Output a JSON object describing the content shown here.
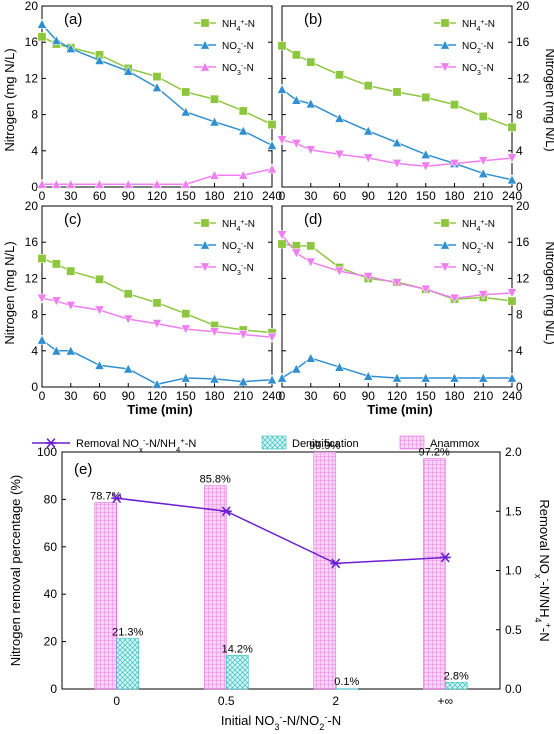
{
  "colors": {
    "NH4": "#8dc63f",
    "NO2": "#2f8fd0",
    "NO3": "#f07ef0",
    "removal": "#6a1fd1",
    "denitrification": "#a8f0f0",
    "anammox": "#f5a3f0"
  },
  "chart_data": [
    {
      "id": "a",
      "type": "line",
      "panel_tag": "(a)",
      "x": [
        0,
        15,
        30,
        60,
        90,
        120,
        150,
        180,
        210,
        240
      ],
      "xlim": [
        0,
        240
      ],
      "ylim": [
        0,
        20
      ],
      "yticks": [
        0,
        4,
        8,
        12,
        16,
        20
      ],
      "xticks": [
        "0",
        "30",
        "60",
        "90",
        "120",
        "150",
        "180",
        "210",
        "240"
      ],
      "series": [
        {
          "name": "NH4+-N",
          "legend": [
            "NH",
            "4",
            "+",
            "-N"
          ],
          "color_key": "NH4",
          "marker": "square",
          "values": [
            16.6,
            15.8,
            15.4,
            14.6,
            13.1,
            12.2,
            10.5,
            9.7,
            8.4,
            6.9
          ]
        },
        {
          "name": "NO2--N",
          "legend": [
            "NO",
            "2",
            "-",
            "-N"
          ],
          "color_key": "NO2",
          "marker": "triangle-up",
          "values": [
            18.0,
            16.2,
            15.3,
            14.0,
            12.8,
            11.0,
            8.3,
            7.2,
            6.2,
            4.6
          ]
        },
        {
          "name": "NO3--N",
          "legend": [
            "NO",
            "3",
            "-",
            "-N"
          ],
          "color_key": "NO3",
          "marker": "triangle-up",
          "values": [
            0.3,
            0.3,
            0.3,
            0.3,
            0.3,
            0.3,
            0.3,
            1.3,
            1.3,
            2.0
          ]
        }
      ]
    },
    {
      "id": "b",
      "type": "line",
      "panel_tag": "(b)",
      "x": [
        0,
        15,
        30,
        60,
        90,
        120,
        150,
        180,
        210,
        240
      ],
      "xlim": [
        0,
        240
      ],
      "ylim": [
        0,
        20
      ],
      "yticks": [
        0,
        4,
        8,
        12,
        16,
        20
      ],
      "xticks": [
        "0",
        "30",
        "60",
        "90",
        "120",
        "150",
        "180",
        "210",
        "240"
      ],
      "series": [
        {
          "name": "NH4+-N",
          "legend": [
            "NH",
            "4",
            "+",
            "-N"
          ],
          "color_key": "NH4",
          "marker": "square",
          "values": [
            15.6,
            14.6,
            13.8,
            12.4,
            11.2,
            10.5,
            9.9,
            9.1,
            7.8,
            6.6
          ]
        },
        {
          "name": "NO2--N",
          "legend": [
            "NO",
            "2",
            "-",
            "-N"
          ],
          "color_key": "NO2",
          "marker": "triangle-up",
          "values": [
            10.8,
            9.6,
            9.2,
            7.6,
            6.2,
            4.9,
            3.6,
            2.6,
            1.5,
            0.8
          ]
        },
        {
          "name": "NO3--N",
          "legend": [
            "NO",
            "3",
            "-",
            "-N"
          ],
          "color_key": "NO3",
          "marker": "triangle-down",
          "values": [
            5.2,
            4.8,
            4.1,
            3.6,
            3.2,
            2.6,
            2.3,
            2.6,
            2.9,
            3.2
          ]
        }
      ]
    },
    {
      "id": "c",
      "type": "line",
      "panel_tag": "(c)",
      "x": [
        0,
        15,
        30,
        60,
        90,
        120,
        150,
        180,
        210,
        240
      ],
      "xlim": [
        0,
        240
      ],
      "ylim": [
        0,
        20
      ],
      "yticks": [
        0,
        4,
        8,
        12,
        16,
        20
      ],
      "xticks": [
        "0",
        "30",
        "60",
        "90",
        "120",
        "150",
        "180",
        "210",
        "240"
      ],
      "series": [
        {
          "name": "NH4+-N",
          "legend": [
            "NH",
            "4",
            "+",
            "-N"
          ],
          "color_key": "NH4",
          "marker": "square",
          "values": [
            14.2,
            13.6,
            12.8,
            11.9,
            10.3,
            9.3,
            8.1,
            6.8,
            6.3,
            6.0
          ]
        },
        {
          "name": "NO2--N",
          "legend": [
            "NO",
            "2",
            "-",
            "-N"
          ],
          "color_key": "NO2",
          "marker": "triangle-up",
          "values": [
            5.2,
            4.0,
            4.0,
            2.4,
            2.0,
            0.3,
            1.0,
            0.9,
            0.6,
            0.8
          ]
        },
        {
          "name": "NO3--N",
          "legend": [
            "NO",
            "3",
            "-",
            "-N"
          ],
          "color_key": "NO3",
          "marker": "triangle-down",
          "values": [
            9.8,
            9.5,
            9.0,
            8.5,
            7.5,
            7.0,
            6.4,
            6.1,
            5.8,
            5.5
          ]
        }
      ]
    },
    {
      "id": "d",
      "type": "line",
      "panel_tag": "(d)",
      "x": [
        0,
        15,
        30,
        60,
        90,
        120,
        150,
        180,
        210,
        240
      ],
      "xlim": [
        0,
        240
      ],
      "ylim": [
        0,
        20
      ],
      "yticks": [
        0,
        4,
        8,
        12,
        16,
        20
      ],
      "xticks": [
        "0",
        "30",
        "60",
        "90",
        "120",
        "150",
        "180",
        "210",
        "240"
      ],
      "series": [
        {
          "name": "NH4+-N",
          "legend": [
            "NH",
            "4",
            "+",
            "-N"
          ],
          "color_key": "NH4",
          "marker": "square",
          "values": [
            15.8,
            15.6,
            15.6,
            13.2,
            12.0,
            11.6,
            10.8,
            9.7,
            9.9,
            9.5
          ]
        },
        {
          "name": "NO2--N",
          "legend": [
            "NO",
            "2",
            "-",
            "-N"
          ],
          "color_key": "NO2",
          "marker": "triangle-up",
          "values": [
            1.0,
            2.0,
            3.2,
            2.2,
            1.2,
            1.0,
            1.0,
            1.0,
            1.0,
            1.0
          ]
        },
        {
          "name": "NO3--N",
          "legend": [
            "NO",
            "3",
            "-",
            "-N"
          ],
          "color_key": "NO3",
          "marker": "triangle-down",
          "values": [
            16.8,
            14.8,
            13.8,
            12.8,
            12.2,
            11.5,
            10.8,
            9.8,
            10.2,
            10.4
          ]
        }
      ]
    },
    {
      "id": "e",
      "type": "bar",
      "panel_tag": "(e)",
      "categories": [
        "0",
        "0.5",
        "2",
        "+∞"
      ],
      "ylim": [
        0,
        100
      ],
      "yticks": [
        0,
        20,
        40,
        60,
        80,
        100
      ],
      "y2lim": [
        0,
        2.0
      ],
      "y2ticks": [
        "0.0",
        "0.5",
        "1.0",
        "1.5",
        "2.0"
      ],
      "series": [
        {
          "name": "Anammox",
          "color_key": "anammox",
          "values": [
            78.7,
            85.8,
            99.9,
            97.2
          ],
          "labels": [
            "78.7%",
            "85.8%",
            "99.9%",
            "97.2%"
          ]
        },
        {
          "name": "Denitrification",
          "color_key": "denitrification",
          "values": [
            21.3,
            14.2,
            0.1,
            2.8
          ],
          "labels": [
            "21.3%",
            "14.2%",
            "0.1%",
            "2.8%"
          ]
        },
        {
          "name": "Removal NOx--N/NH4+-N",
          "color_key": "removal",
          "axis": "right",
          "type": "line",
          "values": [
            1.61,
            1.5,
            1.06,
            1.11
          ]
        }
      ]
    }
  ],
  "labels": {
    "y_top_left": "Nitrogen (mg N/L)",
    "y_top_right": "Nitrogen (mg N/L)",
    "y_mid_left": "Nitrogen (mg N/L)",
    "y_mid_right": "Nitrogen (mg N/L)",
    "x_left": "Time (min)",
    "x_right": "Time (min)",
    "e_ylabel": "Nitrogen removal percentage (%)",
    "e_y2label_parts": [
      "Removal NO",
      "x",
      "-",
      "-N/NH",
      "4",
      "+",
      "-N"
    ],
    "e_xlabel_parts": [
      "Initial NO",
      "3",
      "-",
      "-N/NO",
      "2",
      "-",
      "-N"
    ],
    "legend_removal_parts": [
      "Removal NO",
      "x",
      "-",
      "-N/NH",
      "4",
      "+",
      "-N"
    ],
    "legend_denit": "Denitrification",
    "legend_anammox": "Anammox"
  }
}
